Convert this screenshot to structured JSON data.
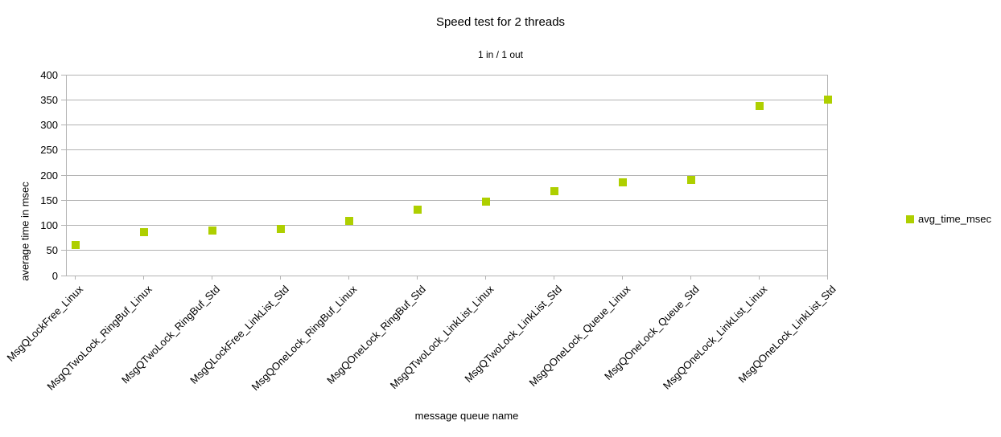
{
  "chart_data": {
    "type": "scatter",
    "title": "Speed test for 2 threads",
    "subtitle": "1 in / 1 out",
    "xlabel": "message queue name",
    "ylabel": "average time in msec",
    "legend": [
      "avg_time_msec"
    ],
    "legend_position": "right",
    "grid": "horizontal",
    "marker_shape": "square",
    "ylim": [
      0,
      400
    ],
    "yticks": [
      0,
      50,
      100,
      150,
      200,
      250,
      300,
      350,
      400
    ],
    "categories": [
      "MsgQLockFree_Linux",
      "MsgQTwoLock_RingBuf_Linux",
      "MsgQTwoLock_RingBuf_Std",
      "MsgQLockFree_LinkList_Std",
      "MsgQOneLock_RingBuf_Linux",
      "MsgQOneLock_RingBuf_Std",
      "MsgQTwoLock_LinkList_Linux",
      "MsgQTwoLock_LinkList_Std",
      "MsgQOneLock_Queue_Linux",
      "MsgQOneLock_Queue_Std",
      "MsgQOneLock_LinkList_Linux",
      "MsgQOneLock_LinkList_Std"
    ],
    "series": [
      {
        "name": "avg_time_msec",
        "values": [
          61,
          87,
          90,
          93,
          109,
          131,
          148,
          168,
          186,
          191,
          337,
          350
        ]
      }
    ],
    "colors": {
      "marker": "#AECF00",
      "gridline": "#B3B3B3",
      "axis": "#B3B3B3",
      "text": "#000000",
      "background": "#FFFFFF"
    }
  }
}
